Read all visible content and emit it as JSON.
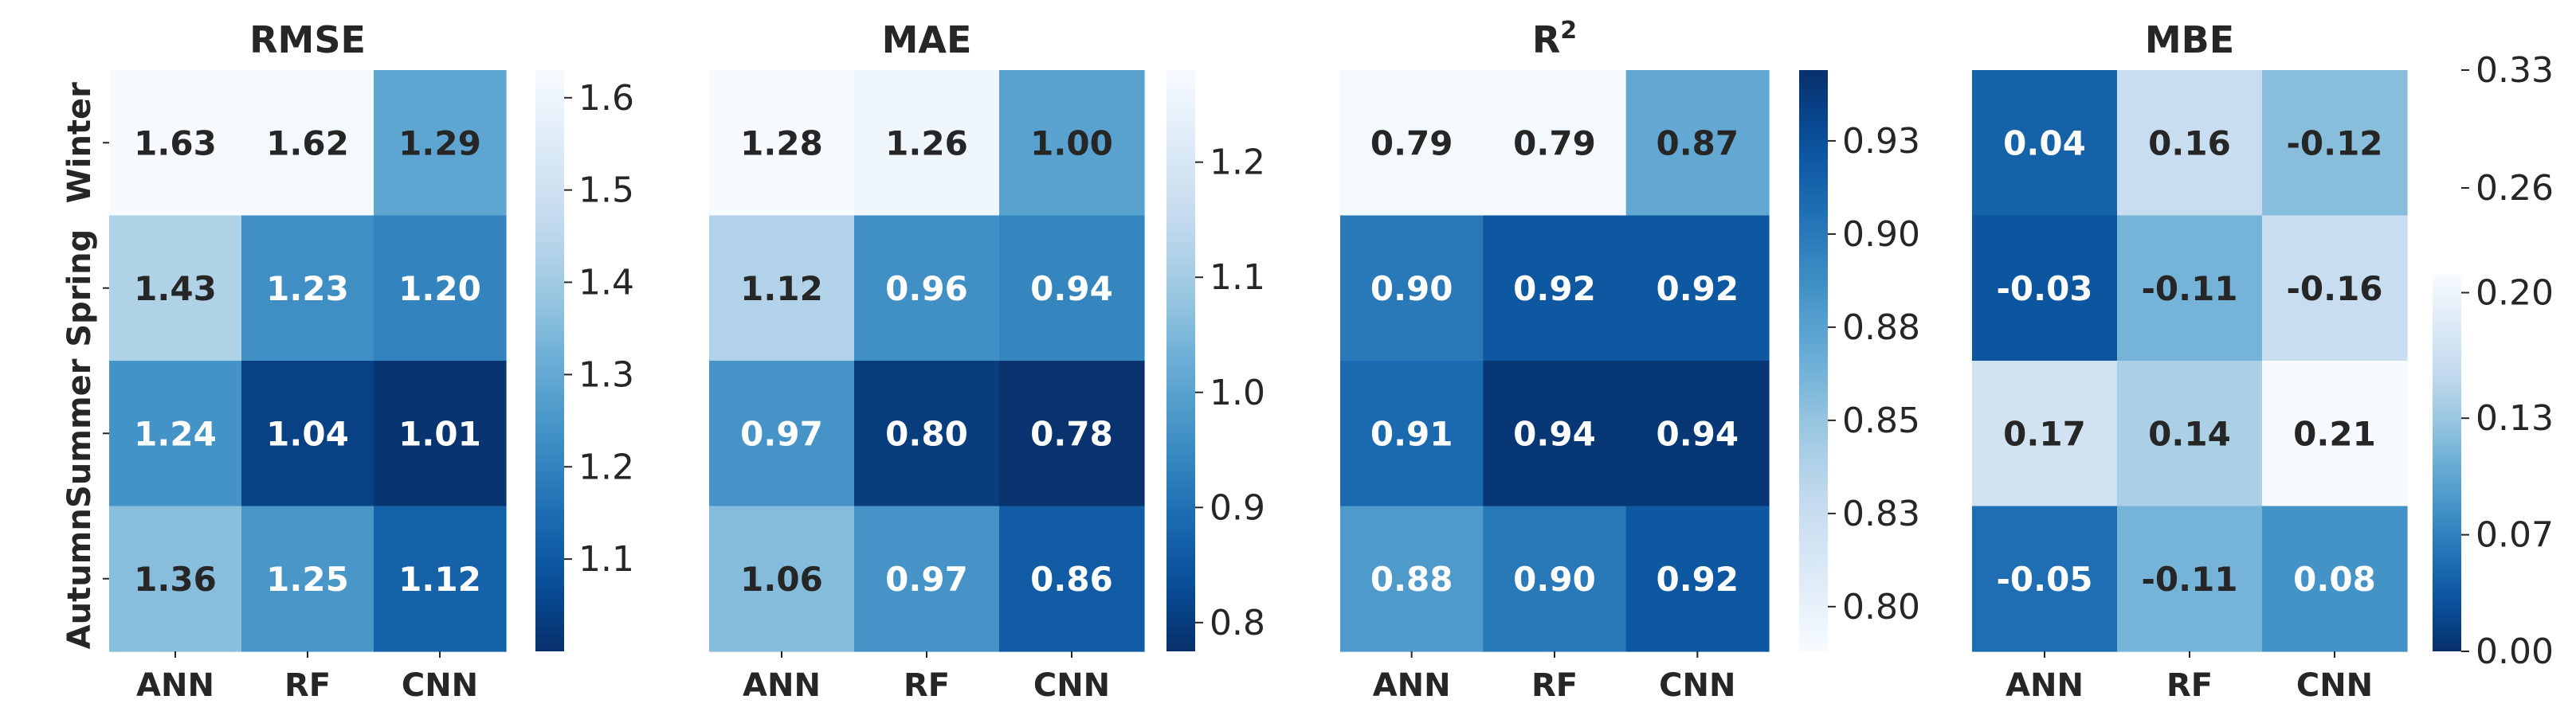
{
  "chart_data": [
    {
      "type": "heatmap",
      "title": "RMSE",
      "rows": [
        "Winter",
        "Spring",
        "Summer",
        "Autumn"
      ],
      "columns": [
        "ANN",
        "RF",
        "CNN"
      ],
      "values": [
        [
          1.63,
          1.62,
          1.29
        ],
        [
          1.43,
          1.23,
          1.2
        ],
        [
          1.24,
          1.04,
          1.01
        ],
        [
          1.36,
          1.25,
          1.12
        ]
      ],
      "labels": [
        [
          "1.63",
          "1.62",
          "1.29"
        ],
        [
          "1.43",
          "1.23",
          "1.20"
        ],
        [
          "1.24",
          "1.04",
          "1.01"
        ],
        [
          "1.36",
          "1.25",
          "1.12"
        ]
      ],
      "colormap": "Blues_r",
      "vmin": 1.0,
      "vmax": 1.63,
      "colorbar_ticks": [
        1.1,
        1.2,
        1.3,
        1.4,
        1.5,
        1.6
      ],
      "colorbar_tick_labels": [
        "1.1",
        "1.2",
        "1.3",
        "1.4",
        "1.5",
        "1.6"
      ]
    },
    {
      "type": "heatmap",
      "title": "MAE",
      "rows": [
        "Winter",
        "Spring",
        "Summer",
        "Autumn"
      ],
      "columns": [
        "ANN",
        "RF",
        "CNN"
      ],
      "values": [
        [
          1.28,
          1.26,
          1.0
        ],
        [
          1.12,
          0.96,
          0.94
        ],
        [
          0.97,
          0.8,
          0.78
        ],
        [
          1.06,
          0.97,
          0.86
        ]
      ],
      "labels": [
        [
          "1.28",
          "1.26",
          "1.00"
        ],
        [
          "1.12",
          "0.96",
          "0.94"
        ],
        [
          "0.97",
          "0.80",
          "0.78"
        ],
        [
          "1.06",
          "0.97",
          "0.86"
        ]
      ],
      "colormap": "Blues_r",
      "vmin": 0.775,
      "vmax": 1.28,
      "colorbar_ticks": [
        0.8,
        0.9,
        1.0,
        1.1,
        1.2
      ],
      "colorbar_tick_labels": [
        "0.8",
        "0.9",
        "1.0",
        "1.1",
        "1.2"
      ]
    },
    {
      "type": "heatmap",
      "title": "R",
      "title_superscript": "2",
      "rows": [
        "Winter",
        "Spring",
        "Summer",
        "Autumn"
      ],
      "columns": [
        "ANN",
        "RF",
        "CNN"
      ],
      "values": [
        [
          0.79,
          0.79,
          0.87
        ],
        [
          0.9,
          0.92,
          0.92
        ],
        [
          0.91,
          0.94,
          0.94
        ],
        [
          0.88,
          0.9,
          0.92
        ]
      ],
      "labels": [
        [
          "0.79",
          "0.79",
          "0.87"
        ],
        [
          "0.90",
          "0.92",
          "0.92"
        ],
        [
          "0.91",
          "0.94",
          "0.94"
        ],
        [
          "0.88",
          "0.90",
          "0.92"
        ]
      ],
      "colormap": "Blues",
      "vmin": 0.788,
      "vmax": 0.944,
      "colorbar_ticks": [
        0.8,
        0.825,
        0.85,
        0.875,
        0.9,
        0.925
      ],
      "colorbar_tick_labels": [
        "0.80",
        "0.83",
        "0.85",
        "0.88",
        "0.90",
        "0.93"
      ]
    },
    {
      "type": "heatmap",
      "title": "MBE",
      "rows": [
        "Winter",
        "Spring",
        "Summer",
        "Autumn"
      ],
      "columns": [
        "ANN",
        "RF",
        "CNN"
      ],
      "values": [
        [
          0.04,
          0.16,
          -0.12
        ],
        [
          -0.03,
          -0.11,
          -0.16
        ],
        [
          0.17,
          0.14,
          0.21
        ],
        [
          -0.05,
          -0.11,
          0.08
        ]
      ],
      "color_values": [
        [
          0.04,
          0.16,
          0.12
        ],
        [
          0.03,
          0.11,
          0.16
        ],
        [
          0.17,
          0.14,
          0.21
        ],
        [
          0.05,
          0.11,
          0.08
        ]
      ],
      "labels": [
        [
          "0.04",
          "0.16",
          "-0.12"
        ],
        [
          "-0.03",
          "-0.11",
          "-0.16"
        ],
        [
          "0.17",
          "0.14",
          "0.21"
        ],
        [
          "-0.05",
          "-0.11",
          "0.08"
        ]
      ],
      "colormap": "Blues_r",
      "vmin": 0.0,
      "vmax": 0.21,
      "colorbar_ticks": [
        0.0,
        0.065,
        0.13,
        0.2
      ],
      "colorbar_tick_labels": [
        "0.00",
        "0.07",
        "0.13",
        "0.20"
      ],
      "extra_ticks": [
        0.26,
        0.33
      ],
      "extra_tick_labels": [
        "0.26",
        "0.33"
      ]
    }
  ]
}
